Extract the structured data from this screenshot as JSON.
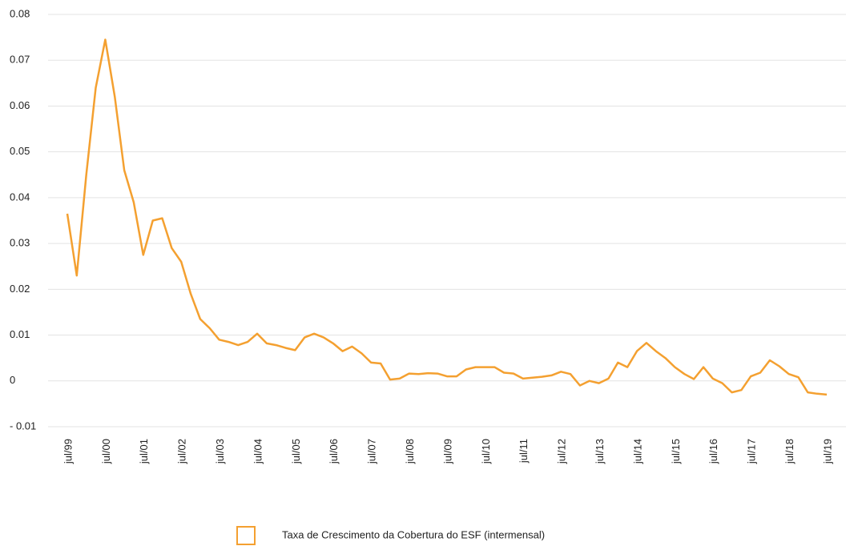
{
  "chart_data": {
    "type": "line",
    "categories": [
      "jul/99",
      null,
      null,
      null,
      "jul/00",
      null,
      null,
      null,
      "jul/01",
      null,
      null,
      null,
      "jul/02",
      null,
      null,
      null,
      "jul/03",
      null,
      null,
      null,
      "jul/04",
      null,
      null,
      null,
      "jul/05",
      null,
      null,
      null,
      "jul/06",
      null,
      null,
      null,
      "jul/07",
      null,
      null,
      null,
      "jul/08",
      null,
      null,
      null,
      "jul/09",
      null,
      null,
      null,
      "jul/10",
      null,
      null,
      null,
      "jul/11",
      null,
      null,
      null,
      "jul/12",
      null,
      null,
      null,
      "jul/13",
      null,
      null,
      null,
      "jul/14",
      null,
      null,
      null,
      "jul/15",
      null,
      null,
      null,
      "jul/16",
      null,
      null,
      null,
      "jul/17",
      null,
      null,
      null,
      "jul/18",
      null,
      null,
      null,
      "jul/19"
    ],
    "series": [
      {
        "name": "Taxa de Crescimento da Cobertura do ESF (intermensal)",
        "color": "#f4a030",
        "values": [
          0.0365,
          0.023,
          0.045,
          0.064,
          0.0745,
          0.062,
          0.046,
          0.039,
          0.0275,
          0.035,
          0.0355,
          0.029,
          0.026,
          0.019,
          0.0135,
          0.0115,
          0.009,
          0.0085,
          0.0078,
          0.0085,
          0.0103,
          0.0082,
          0.0078,
          0.0072,
          0.0067,
          0.0095,
          0.0103,
          0.0095,
          0.0082,
          0.0065,
          0.0075,
          0.006,
          0.004,
          0.0038,
          0.0003,
          0.0005,
          0.0016,
          0.0015,
          0.0017,
          0.0016,
          0.001,
          0.001,
          0.0025,
          0.003,
          0.003,
          0.003,
          0.0018,
          0.0016,
          0.0005,
          0.0007,
          0.0009,
          0.0012,
          0.002,
          0.0015,
          -0.001,
          0,
          -0.0005,
          0.0005,
          0.004,
          0.003,
          0.0065,
          0.0083,
          0.0065,
          0.005,
          0.003,
          0.0015,
          0.0004,
          0.003,
          0.0005,
          -0.0005,
          -0.0025,
          -0.002,
          0.001,
          0.0018,
          0.0045,
          0.0032,
          0.0015,
          0.0008,
          -0.0025,
          -0.0028,
          -0.003
        ]
      }
    ],
    "ylim": [
      -0.01,
      0.08
    ],
    "yticks": [
      {
        "value": -0.01,
        "label": "- 0.01"
      },
      0,
      0.01,
      0.02,
      0.03,
      0.04,
      0.05,
      0.06,
      0.07,
      0.08
    ],
    "grid": true,
    "legend": "bottom"
  }
}
